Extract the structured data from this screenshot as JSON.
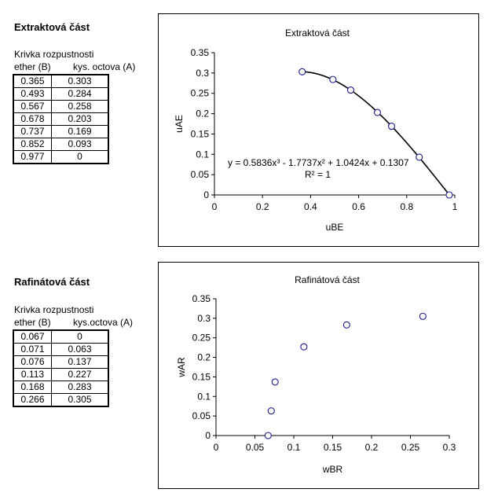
{
  "extract": {
    "section_title": "Extraktová část",
    "table_caption": "Krivka rozpustnosti",
    "col_b": "ether (B)",
    "col_a": "kys. octova (A)",
    "rows": [
      [
        "0.365",
        "0.303"
      ],
      [
        "0.493",
        "0.284"
      ],
      [
        "0.567",
        "0.258"
      ],
      [
        "0.678",
        "0.203"
      ],
      [
        "0.737",
        "0.169"
      ],
      [
        "0.852",
        "0.093"
      ],
      [
        "0.977",
        "0"
      ]
    ]
  },
  "raffinate": {
    "section_title": "Rafinátová část",
    "table_caption": "Krivka rozpustnosti",
    "col_b": "ether (B)",
    "col_a": "kys.octova (A)",
    "rows": [
      [
        "0.067",
        "0"
      ],
      [
        "0.071",
        "0.063"
      ],
      [
        "0.076",
        "0.137"
      ],
      [
        "0.113",
        "0.227"
      ],
      [
        "0.168",
        "0.283"
      ],
      [
        "0.266",
        "0.305"
      ]
    ]
  },
  "chart_data": [
    {
      "type": "scatter",
      "title": "Extraktová část",
      "xlabel": "uBE",
      "ylabel": "uAE",
      "xlim": [
        0,
        1
      ],
      "ylim": [
        0,
        0.35
      ],
      "xticks": [
        "0",
        "0.2",
        "0.4",
        "0.6",
        "0.8",
        "1"
      ],
      "yticks": [
        "0",
        "0.05",
        "0.1",
        "0.15",
        "0.2",
        "0.25",
        "0.3",
        "0.35"
      ],
      "x": [
        0.365,
        0.493,
        0.567,
        0.678,
        0.737,
        0.852,
        0.977
      ],
      "y": [
        0.303,
        0.284,
        0.258,
        0.203,
        0.169,
        0.093,
        0
      ],
      "trendline": {
        "type": "polynomial",
        "coefficients": [
          0.5836,
          -1.7737,
          1.0424,
          0.1307
        ],
        "equation_text": "y = 0.5836x³ - 1.7737x² + 1.0424x + 0.1307",
        "r2_text": "R² = 1"
      },
      "grid": false,
      "legend": "none"
    },
    {
      "type": "scatter",
      "title": "Rafinátová část",
      "xlabel": "wBR",
      "ylabel": "wAR",
      "xlim": [
        0,
        0.3
      ],
      "ylim": [
        0,
        0.35
      ],
      "xticks": [
        "0",
        "0.05",
        "0.1",
        "0.15",
        "0.2",
        "0.25",
        "0.3"
      ],
      "yticks": [
        "0",
        "0.05",
        "0.1",
        "0.15",
        "0.2",
        "0.25",
        "0.3",
        "0.35"
      ],
      "x": [
        0.067,
        0.071,
        0.076,
        0.113,
        0.168,
        0.266
      ],
      "y": [
        0,
        0.063,
        0.137,
        0.227,
        0.283,
        0.305
      ],
      "grid": false,
      "legend": "none"
    }
  ]
}
